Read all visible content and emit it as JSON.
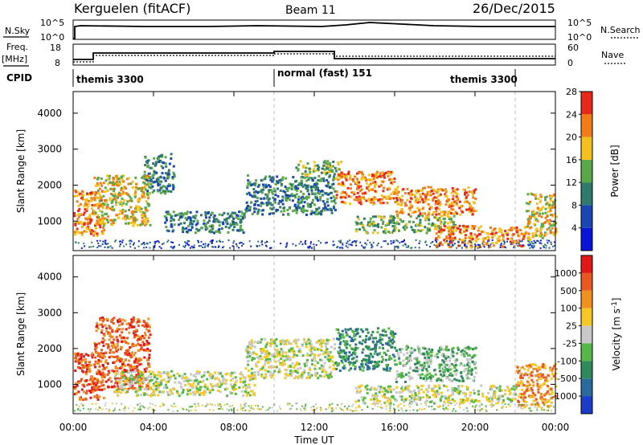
{
  "header": {
    "site": "Kerguelen (fitACF)",
    "beam": "Beam 11",
    "date": "26/Dec/2015"
  },
  "top_panels": {
    "nsky_label": "N.Sky",
    "nsky_ticks": [
      "10^5",
      "10^0"
    ],
    "nsearch_label": "N.Search",
    "nsearch_ticks": [
      "10^5",
      "10^0"
    ],
    "freq_label": "Freq.",
    "freq_unit": "[MHz]",
    "freq_ticks": [
      "18",
      "8"
    ],
    "nave_label": "Nave",
    "nave_ticks": [
      "60",
      "0"
    ],
    "cpid_label": "CPID",
    "cpid_segments": [
      "themis 3300",
      "normal (fast) 151",
      "themis 3300"
    ]
  },
  "chart_data": [
    {
      "type": "heatmap",
      "name": "power-panel",
      "ylabel": "Slant Range [km]",
      "y_ticks": [
        "1000",
        "2000",
        "3000",
        "4000"
      ],
      "ylim": [
        180,
        4600
      ],
      "xlim": [
        "00:00",
        "24:00"
      ],
      "colorbar": {
        "label": "Power [dB]",
        "ticks": [
          "4",
          "8",
          "12",
          "16",
          "20",
          "24",
          "28"
        ],
        "colors": [
          "#0a14d8",
          "#1a46b4",
          "#2f7a6c",
          "#5aa84a",
          "#f3c01e",
          "#f07d18",
          "#e82818"
        ]
      },
      "echo_regions": [
        {
          "t": [
            0.0,
            1.5
          ],
          "r": [
            600,
            1900
          ],
          "level": 5
        },
        {
          "t": [
            1.0,
            3.8
          ],
          "r": [
            900,
            2300
          ],
          "level": 4
        },
        {
          "t": [
            3.5,
            5.0
          ],
          "r": [
            1800,
            2900
          ],
          "level": 2
        },
        {
          "t": [
            4.5,
            8.5
          ],
          "r": [
            700,
            1300
          ],
          "level": 2
        },
        {
          "t": [
            8.5,
            13.0
          ],
          "r": [
            1200,
            2300
          ],
          "level": 2
        },
        {
          "t": [
            11.0,
            13.3
          ],
          "r": [
            2300,
            2700
          ],
          "level": 3
        },
        {
          "t": [
            13.0,
            16.0
          ],
          "r": [
            1500,
            2400
          ],
          "level": 5
        },
        {
          "t": [
            14.0,
            19.0
          ],
          "r": [
            700,
            1200
          ],
          "level": 3
        },
        {
          "t": [
            16.0,
            20.0
          ],
          "r": [
            1200,
            2000
          ],
          "level": 5
        },
        {
          "t": [
            18.0,
            22.5
          ],
          "r": [
            300,
            900
          ],
          "level": 5
        },
        {
          "t": [
            22.5,
            24.0
          ],
          "r": [
            500,
            1800
          ],
          "level": 4
        }
      ]
    },
    {
      "type": "heatmap",
      "name": "velocity-panel",
      "xlabel": "Time UT",
      "ylabel": "Slant Range [km]",
      "x_ticks": [
        "00:00",
        "04:00",
        "08:00",
        "12:00",
        "16:00",
        "20:00",
        "00:00"
      ],
      "y_ticks": [
        "1000",
        "2000",
        "3000",
        "4000"
      ],
      "ylim": [
        180,
        4600
      ],
      "xlim": [
        "00:00",
        "24:00"
      ],
      "colorbar": {
        "label": "Velocity [m s^-1]",
        "ticks": [
          "1000",
          "500",
          "100",
          "25",
          "-25",
          "-100",
          "-500",
          "-1000"
        ],
        "colors": [
          "#1a3cc8",
          "#2b6a9c",
          "#2e8a5a",
          "#56b848",
          "#c8c8c8",
          "#f5c828",
          "#f0901e",
          "#e85820",
          "#e01818"
        ]
      },
      "echo_regions": [
        {
          "t": [
            0.0,
            1.5
          ],
          "r": [
            600,
            1900
          ],
          "level": 7
        },
        {
          "t": [
            1.0,
            3.8
          ],
          "r": [
            900,
            2900
          ],
          "level": 7
        },
        {
          "t": [
            2.0,
            9.0
          ],
          "r": [
            700,
            1400
          ],
          "level": 4
        },
        {
          "t": [
            8.5,
            13.0
          ],
          "r": [
            1200,
            2300
          ],
          "level": 4
        },
        {
          "t": [
            13.0,
            16.0
          ],
          "r": [
            1400,
            2600
          ],
          "level": 2
        },
        {
          "t": [
            16.0,
            20.0
          ],
          "r": [
            1100,
            2100
          ],
          "level": 3
        },
        {
          "t": [
            14.0,
            22.0
          ],
          "r": [
            500,
            1000
          ],
          "level": 4
        },
        {
          "t": [
            22.0,
            24.0
          ],
          "r": [
            400,
            1600
          ],
          "level": 6
        }
      ]
    }
  ]
}
